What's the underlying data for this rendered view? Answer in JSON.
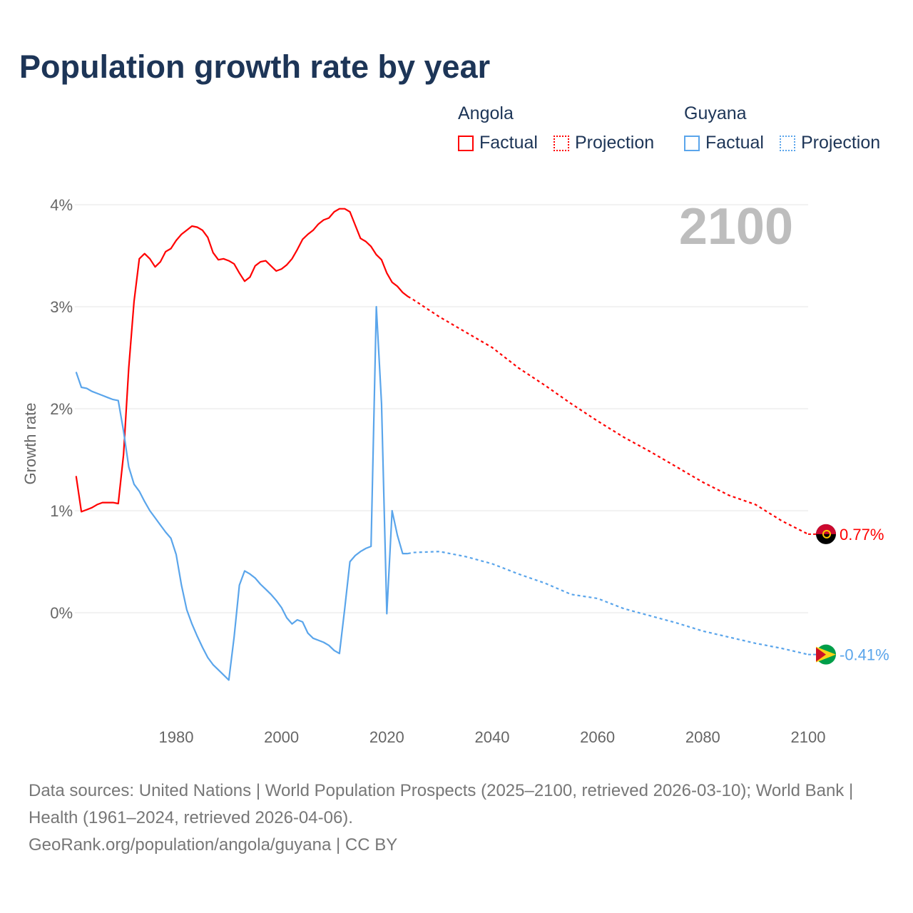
{
  "title": "Population growth rate by year",
  "legend": {
    "groups": [
      {
        "name": "Angola",
        "factual": "Factual",
        "projection": "Projection",
        "color": "#ff0000"
      },
      {
        "name": "Guyana",
        "factual": "Factual",
        "projection": "Projection",
        "color": "#5aa5eb"
      }
    ]
  },
  "footer": {
    "sources": "Data sources: United Nations | World Population Prospects (2025–2100, retrieved 2026-03-10); World Bank | Health (1961–2024, retrieved 2026-04-06).",
    "link": "GeoRank.org/population/angola/guyana | CC BY"
  },
  "chart_data": {
    "type": "line",
    "title": "Population growth rate by year",
    "ylabel": "Growth rate",
    "xlabel": "",
    "current_year_label": "2100",
    "xlim": [
      1961,
      2100
    ],
    "ylim": [
      -0.9,
      4.2
    ],
    "x_ticks": [
      1980,
      2000,
      2020,
      2040,
      2060,
      2080,
      2100
    ],
    "y_ticks": [
      0,
      1,
      2,
      3,
      4
    ],
    "y_tick_labels": [
      "0%",
      "1%",
      "2%",
      "3%",
      "4%"
    ],
    "grid": true,
    "series": [
      {
        "name": "Angola",
        "color": "#ff0000",
        "end_label": "0.77%",
        "factual": {
          "x": [
            1961,
            1962,
            1963,
            1964,
            1965,
            1966,
            1967,
            1968,
            1969,
            1970,
            1971,
            1972,
            1973,
            1974,
            1975,
            1976,
            1977,
            1978,
            1979,
            1980,
            1981,
            1982,
            1983,
            1984,
            1985,
            1986,
            1987,
            1988,
            1989,
            1990,
            1991,
            1992,
            1993,
            1994,
            1995,
            1996,
            1997,
            1998,
            1999,
            2000,
            2001,
            2002,
            2003,
            2004,
            2005,
            2006,
            2007,
            2008,
            2009,
            2010,
            2011,
            2012,
            2013,
            2014,
            2015,
            2016,
            2017,
            2018,
            2019,
            2020,
            2021,
            2022,
            2023,
            2024
          ],
          "y": [
            1.34,
            0.99,
            1.01,
            1.03,
            1.06,
            1.08,
            1.08,
            1.08,
            1.07,
            1.55,
            2.4,
            3.05,
            3.47,
            3.52,
            3.47,
            3.39,
            3.44,
            3.54,
            3.57,
            3.65,
            3.71,
            3.75,
            3.79,
            3.78,
            3.75,
            3.68,
            3.53,
            3.46,
            3.47,
            3.45,
            3.42,
            3.33,
            3.25,
            3.29,
            3.4,
            3.44,
            3.45,
            3.4,
            3.35,
            3.37,
            3.41,
            3.47,
            3.56,
            3.66,
            3.71,
            3.75,
            3.81,
            3.85,
            3.87,
            3.93,
            3.96,
            3.96,
            3.93,
            3.8,
            3.67,
            3.64,
            3.59,
            3.51,
            3.46,
            3.33,
            3.24,
            3.2,
            3.14,
            3.1
          ]
        },
        "projection": {
          "x": [
            2024,
            2025,
            2030,
            2035,
            2040,
            2045,
            2050,
            2055,
            2060,
            2065,
            2070,
            2075,
            2080,
            2085,
            2090,
            2095,
            2100
          ],
          "y": [
            3.1,
            3.07,
            2.9,
            2.75,
            2.6,
            2.4,
            2.23,
            2.05,
            1.88,
            1.72,
            1.58,
            1.43,
            1.28,
            1.15,
            1.06,
            0.9,
            0.77
          ]
        }
      },
      {
        "name": "Guyana",
        "color": "#5aa5eb",
        "end_label": "-0.41%",
        "factual": {
          "x": [
            1961,
            1962,
            1963,
            1964,
            1965,
            1966,
            1967,
            1968,
            1969,
            1970,
            1971,
            1972,
            1973,
            1974,
            1975,
            1976,
            1977,
            1978,
            1979,
            1980,
            1981,
            1982,
            1983,
            1984,
            1985,
            1986,
            1987,
            1988,
            1989,
            1990,
            1991,
            1992,
            1993,
            1994,
            1995,
            1996,
            1997,
            1998,
            1999,
            2000,
            2001,
            2002,
            2003,
            2004,
            2005,
            2006,
            2007,
            2008,
            2009,
            2010,
            2011,
            2012,
            2013,
            2014,
            2015,
            2016,
            2017,
            2018,
            2019,
            2020,
            2021,
            2022,
            2023,
            2024
          ],
          "y": [
            2.36,
            2.21,
            2.2,
            2.17,
            2.15,
            2.13,
            2.11,
            2.09,
            2.08,
            1.78,
            1.43,
            1.26,
            1.19,
            1.09,
            1.0,
            0.93,
            0.86,
            0.79,
            0.73,
            0.57,
            0.27,
            0.03,
            -0.11,
            -0.23,
            -0.34,
            -0.44,
            -0.51,
            -0.56,
            -0.61,
            -0.66,
            -0.24,
            0.27,
            0.41,
            0.38,
            0.34,
            0.28,
            0.23,
            0.18,
            0.12,
            0.05,
            -0.05,
            -0.11,
            -0.07,
            -0.09,
            -0.2,
            -0.25,
            -0.27,
            -0.29,
            -0.32,
            -0.37,
            -0.4,
            0.04,
            0.5,
            0.56,
            0.6,
            0.63,
            0.65,
            3.0,
            2.05,
            -0.01,
            1.0,
            0.76,
            0.58,
            0.58
          ]
        },
        "projection": {
          "x": [
            2024,
            2025,
            2030,
            2035,
            2040,
            2045,
            2050,
            2055,
            2060,
            2065,
            2070,
            2075,
            2080,
            2085,
            2090,
            2095,
            2100
          ],
          "y": [
            0.58,
            0.59,
            0.6,
            0.55,
            0.48,
            0.38,
            0.29,
            0.18,
            0.14,
            0.04,
            -0.03,
            -0.1,
            -0.18,
            -0.24,
            -0.3,
            -0.35,
            -0.41
          ]
        }
      }
    ]
  }
}
